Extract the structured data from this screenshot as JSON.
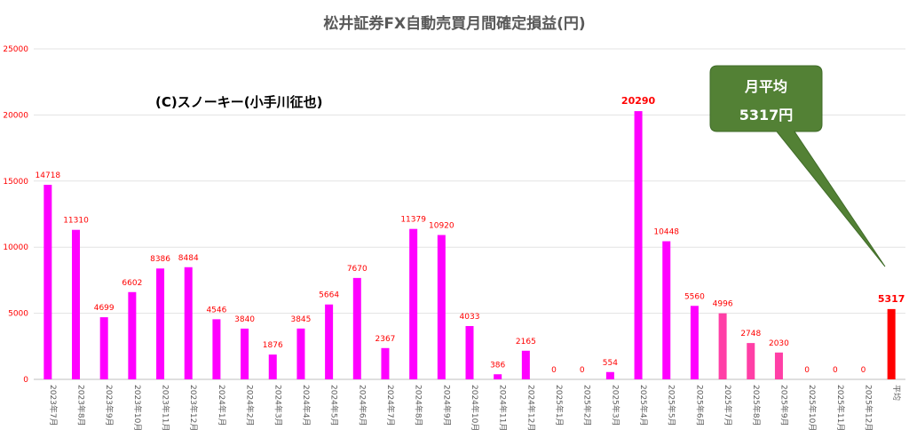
{
  "chart_data": {
    "type": "bar",
    "title": "松井証券FX自動売買月間確定損益(円)",
    "ylim": [
      0,
      25000
    ],
    "yticks": [
      0,
      5000,
      10000,
      15000,
      20000,
      25000
    ],
    "categories": [
      "2023年7月",
      "2023年8月",
      "2023年9月",
      "2023年10月",
      "2023年11月",
      "2023年12月",
      "2024年1月",
      "2024年2月",
      "2024年3月",
      "2024年4月",
      "2024年5月",
      "2024年6月",
      "2024年7月",
      "2024年8月",
      "2024年9月",
      "2024年10月",
      "2024年11月",
      "2024年12月",
      "2025年1月",
      "2025年2月",
      "2025年3月",
      "2025年4月",
      "2025年5月",
      "2025年6月",
      "2025年7月",
      "2025年8月",
      "2025年9月",
      "2025年10月",
      "2025年11月",
      "2025年12月",
      "平均"
    ],
    "values": [
      14718,
      11310,
      4699,
      6602,
      8386,
      8484,
      4546,
      3840,
      1876,
      3845,
      5664,
      7670,
      2367,
      11379,
      10920,
      4033,
      386,
      2165,
      0,
      0,
      554,
      20290,
      10448,
      5560,
      4996,
      2748,
      2030,
      0,
      0,
      0,
      5317
    ],
    "colors": [
      "#ff00ff",
      "#ff00ff",
      "#ff00ff",
      "#ff00ff",
      "#ff00ff",
      "#ff00ff",
      "#ff00ff",
      "#ff00ff",
      "#ff00ff",
      "#ff00ff",
      "#ff00ff",
      "#ff00ff",
      "#ff00ff",
      "#ff00ff",
      "#ff00ff",
      "#ff00ff",
      "#ff00ff",
      "#ff00ff",
      "#ff00ff",
      "#ff00ff",
      "#ff00ff",
      "#ff00ff",
      "#ff00ff",
      "#ff00ff",
      "#ff3fa6",
      "#ff3fa6",
      "#ff3fa6",
      "#ff3fa6",
      "#ff3fa6",
      "#ff3fa6",
      "#ff0000"
    ],
    "bold_labels": [
      21,
      30
    ],
    "grid": true,
    "legend": "none"
  },
  "annotations": {
    "copyright": "(C)スノーキー(小手川征也)",
    "callout_line1": "月平均",
    "callout_line2": "5317円",
    "callout_color": "#538135"
  }
}
